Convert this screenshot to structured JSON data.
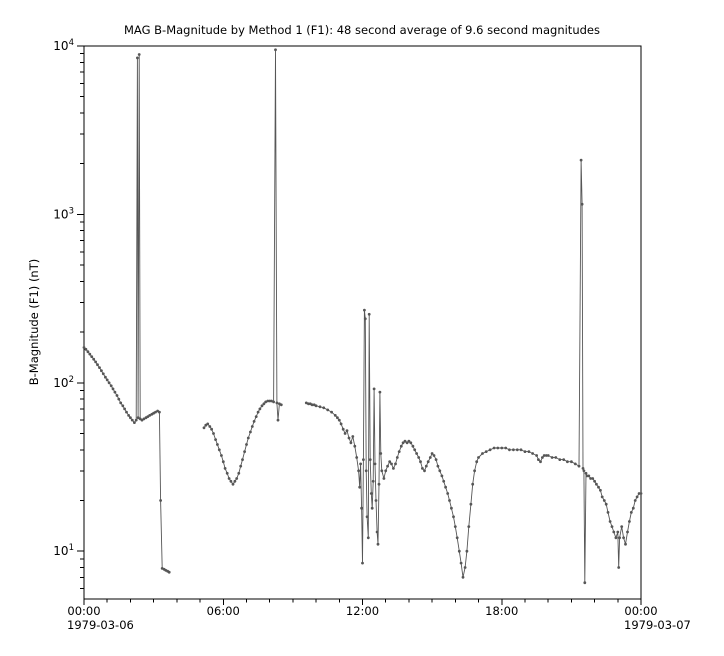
{
  "figure": {
    "background_color": "#ffffff",
    "frame_color": "#000000",
    "series_color": "#565656"
  },
  "chart_data": {
    "type": "line",
    "title": "MAG  B-Magnitude by Method 1 (F1): 48 second average of 9.6 second magnitudes",
    "xlabel": "",
    "ylabel": "B-Magnitude (F1) (nT)",
    "grid": false,
    "legend": "none",
    "marker": "dot",
    "x_axis": {
      "range_hours": [
        0,
        24
      ],
      "major_ticks_hours": [
        0,
        6,
        12,
        18,
        24
      ],
      "major_tick_labels": [
        "00:00",
        "06:00",
        "12:00",
        "18:00",
        "00:00"
      ],
      "minor_tick_step_hours": 1,
      "start_date": "1979-03-06",
      "end_date": "1979-03-07"
    },
    "y_axis": {
      "scale": "log",
      "range": [
        5.2,
        10000
      ],
      "major_ticks": [
        10,
        100,
        1000,
        10000
      ],
      "tick_label_base": "10",
      "minor_ticks_per_decade": [
        2,
        3,
        4,
        5,
        6,
        7,
        8,
        9
      ]
    },
    "series": [
      {
        "name": "B-Magnitude (F1)",
        "color": "#565656",
        "units": "nT",
        "segments": [
          [
            [
              0.0,
              162
            ],
            [
              0.08,
              158
            ],
            [
              0.17,
              153
            ],
            [
              0.25,
              148
            ],
            [
              0.33,
              143
            ],
            [
              0.42,
              138
            ],
            [
              0.5,
              133
            ],
            [
              0.58,
              128
            ],
            [
              0.67,
              123
            ],
            [
              0.75,
              118
            ],
            [
              0.83,
              113
            ],
            [
              0.92,
              108
            ],
            [
              1.0,
              104
            ],
            [
              1.08,
              100
            ],
            [
              1.17,
              96
            ],
            [
              1.25,
              92
            ],
            [
              1.33,
              88
            ],
            [
              1.42,
              84
            ],
            [
              1.5,
              80
            ],
            [
              1.58,
              76
            ],
            [
              1.67,
              73
            ],
            [
              1.75,
              70
            ],
            [
              1.83,
              67
            ],
            [
              1.92,
              64
            ],
            [
              2.0,
              62
            ],
            [
              2.08,
              60
            ],
            [
              2.17,
              58
            ],
            [
              2.25,
              60
            ],
            [
              2.3,
              8500
            ],
            [
              2.33,
              62
            ],
            [
              2.38,
              8900
            ],
            [
              2.42,
              61
            ],
            [
              2.5,
              60
            ],
            [
              2.58,
              61
            ],
            [
              2.67,
              62
            ],
            [
              2.75,
              63
            ],
            [
              2.83,
              64
            ],
            [
              2.92,
              65
            ],
            [
              3.0,
              66
            ],
            [
              3.08,
              67
            ],
            [
              3.17,
              68
            ],
            [
              3.25,
              67
            ],
            [
              3.3,
              20
            ],
            [
              3.37,
              7.9
            ],
            [
              3.45,
              7.8
            ],
            [
              3.52,
              7.7
            ],
            [
              3.6,
              7.6
            ],
            [
              3.67,
              7.5
            ]
          ],
          [
            [
              5.17,
              54
            ],
            [
              5.25,
              56
            ],
            [
              5.33,
              57
            ],
            [
              5.42,
              55
            ],
            [
              5.5,
              53
            ],
            [
              5.58,
              50
            ],
            [
              5.67,
              46
            ],
            [
              5.75,
              43
            ],
            [
              5.83,
              40
            ],
            [
              5.92,
              37
            ],
            [
              6.0,
              34
            ],
            [
              6.08,
              31
            ],
            [
              6.17,
              29
            ],
            [
              6.25,
              27
            ],
            [
              6.33,
              26
            ],
            [
              6.42,
              25
            ],
            [
              6.5,
              26
            ],
            [
              6.58,
              27
            ],
            [
              6.67,
              29
            ],
            [
              6.75,
              32
            ],
            [
              6.83,
              35
            ],
            [
              6.92,
              39
            ],
            [
              7.0,
              43
            ],
            [
              7.08,
              47
            ],
            [
              7.17,
              51
            ],
            [
              7.25,
              55
            ],
            [
              7.33,
              59
            ],
            [
              7.42,
              63
            ],
            [
              7.5,
              67
            ],
            [
              7.58,
              70
            ],
            [
              7.67,
              73
            ],
            [
              7.75,
              75
            ],
            [
              7.83,
              77
            ],
            [
              7.92,
              78
            ],
            [
              8.0,
              78
            ],
            [
              8.08,
              78
            ],
            [
              8.17,
              77
            ],
            [
              8.25,
              9500
            ],
            [
              8.31,
              76
            ],
            [
              8.36,
              60
            ],
            [
              8.42,
              75
            ],
            [
              8.5,
              74
            ]
          ],
          [
            [
              9.58,
              76
            ],
            [
              9.67,
              75
            ],
            [
              9.75,
              75
            ],
            [
              9.83,
              74
            ],
            [
              9.92,
              74
            ],
            [
              10.0,
              73
            ],
            [
              10.17,
              72
            ],
            [
              10.33,
              71
            ],
            [
              10.5,
              69
            ],
            [
              10.67,
              67
            ],
            [
              10.83,
              64
            ],
            [
              10.92,
              62
            ],
            [
              11.0,
              60
            ],
            [
              11.08,
              57
            ],
            [
              11.17,
              53
            ],
            [
              11.25,
              50
            ],
            [
              11.33,
              52
            ],
            [
              11.42,
              47
            ],
            [
              11.5,
              44
            ],
            [
              11.58,
              48
            ],
            [
              11.67,
              42
            ],
            [
              11.75,
              36
            ],
            [
              11.83,
              30
            ],
            [
              11.88,
              24
            ],
            [
              11.92,
              33
            ],
            [
              11.96,
              18
            ],
            [
              12.0,
              8.5
            ],
            [
              12.04,
              35
            ],
            [
              12.08,
              270
            ],
            [
              12.12,
              240
            ],
            [
              12.16,
              30
            ],
            [
              12.2,
              16
            ],
            [
              12.25,
              12
            ],
            [
              12.29,
              255
            ],
            [
              12.33,
              35
            ],
            [
              12.38,
              22
            ],
            [
              12.42,
              18
            ],
            [
              12.46,
              26
            ],
            [
              12.5,
              92
            ],
            [
              12.54,
              33
            ],
            [
              12.58,
              20
            ],
            [
              12.63,
              13
            ],
            [
              12.67,
              11
            ],
            [
              12.71,
              25
            ],
            [
              12.75,
              88
            ],
            [
              12.79,
              38
            ],
            [
              12.83,
              30
            ],
            [
              12.92,
              27
            ],
            [
              13.0,
              30
            ],
            [
              13.08,
              32
            ],
            [
              13.17,
              34
            ],
            [
              13.25,
              33
            ],
            [
              13.33,
              31
            ],
            [
              13.42,
              33
            ],
            [
              13.5,
              36
            ],
            [
              13.58,
              39
            ],
            [
              13.67,
              42
            ],
            [
              13.75,
              44
            ],
            [
              13.83,
              45
            ],
            [
              13.92,
              44
            ],
            [
              14.0,
              45
            ],
            [
              14.08,
              44
            ],
            [
              14.17,
              42
            ],
            [
              14.25,
              40
            ],
            [
              14.33,
              38
            ],
            [
              14.42,
              36
            ],
            [
              14.5,
              34
            ],
            [
              14.58,
              31
            ],
            [
              14.67,
              30
            ],
            [
              14.75,
              32
            ],
            [
              14.83,
              34
            ],
            [
              14.92,
              36
            ],
            [
              15.0,
              38
            ],
            [
              15.08,
              37
            ],
            [
              15.17,
              35
            ],
            [
              15.25,
              32
            ],
            [
              15.33,
              30
            ],
            [
              15.42,
              28
            ],
            [
              15.5,
              26
            ],
            [
              15.58,
              24
            ],
            [
              15.67,
              22
            ],
            [
              15.75,
              20
            ],
            [
              15.83,
              18
            ],
            [
              15.92,
              16
            ],
            [
              16.0,
              14
            ],
            [
              16.08,
              12
            ],
            [
              16.17,
              10
            ],
            [
              16.25,
              8.5
            ],
            [
              16.33,
              7
            ],
            [
              16.42,
              8
            ],
            [
              16.5,
              10
            ],
            [
              16.58,
              14
            ],
            [
              16.67,
              19
            ],
            [
              16.75,
              25
            ],
            [
              16.83,
              30
            ],
            [
              16.92,
              34
            ],
            [
              17.0,
              36
            ],
            [
              17.17,
              38
            ],
            [
              17.33,
              39
            ],
            [
              17.5,
              40
            ],
            [
              17.67,
              41
            ],
            [
              17.83,
              41
            ],
            [
              18.0,
              41
            ],
            [
              18.17,
              41
            ],
            [
              18.33,
              40
            ],
            [
              18.5,
              40
            ],
            [
              18.67,
              40
            ],
            [
              18.83,
              40
            ],
            [
              19.0,
              39
            ],
            [
              19.17,
              39
            ],
            [
              19.33,
              38
            ],
            [
              19.5,
              37
            ],
            [
              19.58,
              35
            ],
            [
              19.67,
              34
            ],
            [
              19.75,
              36
            ],
            [
              19.83,
              37
            ],
            [
              19.92,
              37
            ],
            [
              20.0,
              37
            ],
            [
              20.17,
              36
            ],
            [
              20.33,
              36
            ],
            [
              20.5,
              35
            ],
            [
              20.67,
              35
            ],
            [
              20.83,
              34
            ],
            [
              21.0,
              34
            ],
            [
              21.17,
              33
            ],
            [
              21.33,
              32
            ],
            [
              21.42,
              2100
            ],
            [
              21.46,
              1150
            ],
            [
              21.5,
              31
            ],
            [
              21.54,
              30
            ],
            [
              21.58,
              6.5
            ],
            [
              21.63,
              29
            ],
            [
              21.67,
              28
            ],
            [
              21.75,
              28
            ],
            [
              21.83,
              27
            ],
            [
              21.92,
              27
            ],
            [
              22.0,
              26
            ],
            [
              22.08,
              25
            ],
            [
              22.17,
              24
            ],
            [
              22.25,
              23
            ],
            [
              22.33,
              21
            ],
            [
              22.42,
              20
            ],
            [
              22.5,
              19
            ],
            [
              22.58,
              17
            ],
            [
              22.67,
              15
            ],
            [
              22.75,
              14
            ],
            [
              22.83,
              13
            ],
            [
              22.92,
              12
            ],
            [
              23.0,
              13
            ],
            [
              23.04,
              8
            ],
            [
              23.08,
              12
            ],
            [
              23.17,
              14
            ],
            [
              23.25,
              12
            ],
            [
              23.33,
              11
            ],
            [
              23.42,
              13
            ],
            [
              23.5,
              15
            ],
            [
              23.58,
              17
            ],
            [
              23.67,
              18
            ],
            [
              23.75,
              20
            ],
            [
              23.83,
              21
            ],
            [
              23.92,
              22
            ],
            [
              24.0,
              22
            ]
          ]
        ]
      }
    ]
  }
}
